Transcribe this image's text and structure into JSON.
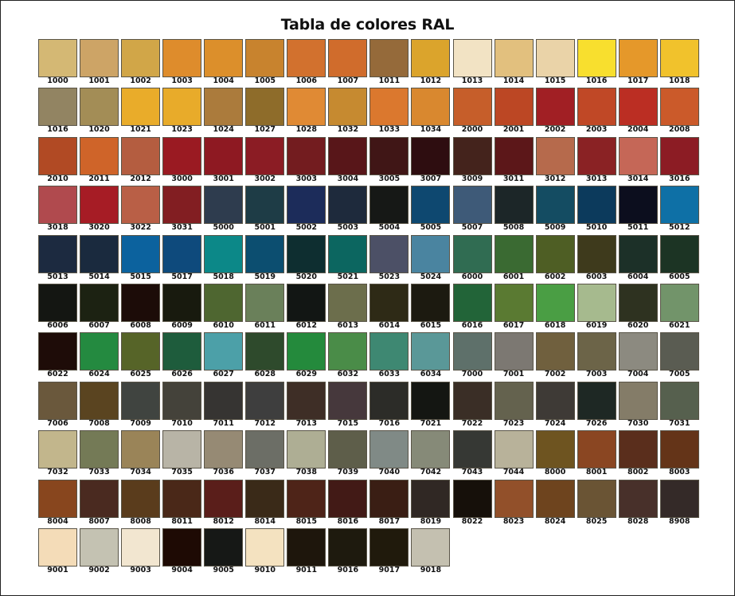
{
  "title": "Tabla de colores RAL",
  "rows": [
    [
      [
        "1000",
        "#d4b874"
      ],
      [
        "1001",
        "#cda466"
      ],
      [
        "1002",
        "#d1a648"
      ],
      [
        "1003",
        "#de8c2c"
      ],
      [
        "1004",
        "#dc8f2b"
      ],
      [
        "1005",
        "#c8832e"
      ],
      [
        "1006",
        "#d2712e"
      ],
      [
        "1007",
        "#d06c2c"
      ],
      [
        "1011",
        "#956a3a"
      ],
      [
        "1012",
        "#dba42c"
      ],
      [
        "1013",
        "#f2e3c4"
      ],
      [
        "1014",
        "#e2c07e"
      ],
      [
        "1015",
        "#ead3a8"
      ],
      [
        "1016",
        "#f8df2e"
      ],
      [
        "1017",
        "#e5982a"
      ],
      [
        "1018",
        "#f1c22c"
      ]
    ],
    [
      [
        "1016",
        "#928462"
      ],
      [
        "1020",
        "#a38d56"
      ],
      [
        "1021",
        "#e9ac2a"
      ],
      [
        "1023",
        "#e8ab2a"
      ],
      [
        "1024",
        "#ab7b3c"
      ],
      [
        "1027",
        "#8e6c2a"
      ],
      [
        "1028",
        "#e08a34"
      ],
      [
        "1032",
        "#c68a30"
      ],
      [
        "1033",
        "#db782e"
      ],
      [
        "1034",
        "#d9882f"
      ],
      [
        "2000",
        "#c65e2a"
      ],
      [
        "2001",
        "#bc4724"
      ],
      [
        "2002",
        "#a11f24"
      ],
      [
        "2003",
        "#c04826"
      ],
      [
        "2004",
        "#bb2e23"
      ],
      [
        "2008",
        "#cb5a2a"
      ]
    ],
    [
      [
        "2010",
        "#b14a24"
      ],
      [
        "2011",
        "#cf6429"
      ],
      [
        "2012",
        "#b45d40"
      ],
      [
        "3000",
        "#9a1a22"
      ],
      [
        "3001",
        "#8e1922"
      ],
      [
        "3002",
        "#8b1c24"
      ],
      [
        "3003",
        "#731c1f"
      ],
      [
        "3004",
        "#581619"
      ],
      [
        "3005",
        "#401616"
      ],
      [
        "3007",
        "#2e0d10"
      ],
      [
        "3009",
        "#44231c"
      ],
      [
        "3011",
        "#5c1719"
      ],
      [
        "3012",
        "#b66a4c"
      ],
      [
        "3013",
        "#8a2224"
      ],
      [
        "3014",
        "#c56757"
      ],
      [
        "3016",
        "#8c1c24"
      ]
    ],
    [
      [
        "3018",
        "#b04a4e"
      ],
      [
        "3020",
        "#a61c25"
      ],
      [
        "3022",
        "#b95f46"
      ],
      [
        "3031",
        "#821e22"
      ],
      [
        "5000",
        "#2e3c4e"
      ],
      [
        "5001",
        "#1e3c46"
      ],
      [
        "5002",
        "#1c2c5a"
      ],
      [
        "5003",
        "#1e2a3c"
      ],
      [
        "5004",
        "#161816"
      ],
      [
        "5005",
        "#0e4870"
      ],
      [
        "5007",
        "#3e5a78"
      ],
      [
        "5008",
        "#1c2628"
      ],
      [
        "5009",
        "#144c62"
      ],
      [
        "5010",
        "#0c3a5c"
      ],
      [
        "5011",
        "#0c0e1e"
      ],
      [
        "5012",
        "#0e70a6"
      ]
    ],
    [
      [
        "5013",
        "#1c2a40"
      ],
      [
        "5014",
        "#1a2a3e"
      ],
      [
        "5015",
        "#0c629e"
      ],
      [
        "5017",
        "#0e4a7c"
      ],
      [
        "5018",
        "#0c8888"
      ],
      [
        "5019",
        "#0c4e70"
      ],
      [
        "5020",
        "#0e2e30"
      ],
      [
        "5021",
        "#0c6660"
      ],
      [
        "5023",
        "#4c5066"
      ],
      [
        "5024",
        "#4a84a0"
      ],
      [
        "6000",
        "#306c52"
      ],
      [
        "6001",
        "#3a6a32"
      ],
      [
        "6002",
        "#4e5e24"
      ],
      [
        "6003",
        "#3e3a1c"
      ],
      [
        "6004",
        "#1c3028"
      ],
      [
        "6005",
        "#1c3424"
      ]
    ],
    [
      [
        "6006",
        "#141612"
      ],
      [
        "6007",
        "#1c2212"
      ],
      [
        "6008",
        "#1c0c08"
      ],
      [
        "6009",
        "#181a0e"
      ],
      [
        "6010",
        "#4e6630"
      ],
      [
        "6011",
        "#6a805a"
      ],
      [
        "6012",
        "#121614"
      ],
      [
        "6013",
        "#6c6e4c"
      ],
      [
        "6014",
        "#2e2a16"
      ],
      [
        "6015",
        "#1c1a10"
      ],
      [
        "6016",
        "#226438"
      ],
      [
        "6017",
        "#5a7a32"
      ],
      [
        "6018",
        "#4a9e44"
      ],
      [
        "6019",
        "#a6ba8e"
      ],
      [
        "6020",
        "#2e3220"
      ],
      [
        "6021",
        "#72946a"
      ]
    ],
    [
      [
        "6022",
        "#1e0c08"
      ],
      [
        "6024",
        "#248a40"
      ],
      [
        "6025",
        "#566428"
      ],
      [
        "6026",
        "#1e5c3c"
      ],
      [
        "6027",
        "#4ca0a8"
      ],
      [
        "6028",
        "#2e4a2c"
      ],
      [
        "6029",
        "#248a3c"
      ],
      [
        "6032",
        "#4a8c48"
      ],
      [
        "6033",
        "#3e8872"
      ],
      [
        "6034",
        "#5a9898"
      ],
      [
        "7000",
        "#5e706a"
      ],
      [
        "7001",
        "#7c7872"
      ],
      [
        "7002",
        "#70603e"
      ],
      [
        "7003",
        "#6c6448"
      ],
      [
        "7004",
        "#8c8a80"
      ],
      [
        "7005",
        "#5a5c52"
      ]
    ],
    [
      [
        "7006",
        "#6a583c"
      ],
      [
        "7008",
        "#5a4420"
      ],
      [
        "7009",
        "#404440"
      ],
      [
        "7010",
        "#44423a"
      ],
      [
        "7011",
        "#363432"
      ],
      [
        "7012",
        "#3e3e3e"
      ],
      [
        "7013",
        "#3e2e26"
      ],
      [
        "7015",
        "#46383c"
      ],
      [
        "7016",
        "#2c2c28"
      ],
      [
        "7021",
        "#141612"
      ],
      [
        "7022",
        "#3a2e26"
      ],
      [
        "7023",
        "#64624e"
      ],
      [
        "7024",
        "#3e3a36"
      ],
      [
        "7026",
        "#1e2824"
      ],
      [
        "7030",
        "#847c68"
      ],
      [
        "7031",
        "#56604e"
      ]
    ],
    [
      [
        "7032",
        "#c2b68c"
      ],
      [
        "7033",
        "#747a56"
      ],
      [
        "7034",
        "#9a8458"
      ],
      [
        "7035",
        "#b8b4a6"
      ],
      [
        "7036",
        "#968a74"
      ],
      [
        "7037",
        "#6c6e66"
      ],
      [
        "7038",
        "#aeae94"
      ],
      [
        "7039",
        "#5e5e4a"
      ],
      [
        "7040",
        "#808a86"
      ],
      [
        "7042",
        "#868a78"
      ],
      [
        "7043",
        "#363834"
      ],
      [
        "7044",
        "#b8b29a"
      ],
      [
        "8000",
        "#6e5420"
      ],
      [
        "8001",
        "#8a4622"
      ],
      [
        "8002",
        "#5a2e1c"
      ],
      [
        "8003",
        "#643418"
      ]
    ],
    [
      [
        "8004",
        "#88461e"
      ],
      [
        "8007",
        "#4a2a20"
      ],
      [
        "8008",
        "#5a3c1c"
      ],
      [
        "8011",
        "#4a2818"
      ],
      [
        "8012",
        "#5a1e1a"
      ],
      [
        "8014",
        "#3a2a18"
      ],
      [
        "8015",
        "#4e2418"
      ],
      [
        "8016",
        "#421a16"
      ],
      [
        "8017",
        "#3a1e14"
      ],
      [
        "8019",
        "#302824"
      ],
      [
        "8022",
        "#16100a"
      ],
      [
        "8023",
        "#92502a"
      ],
      [
        "8024",
        "#6e441e"
      ],
      [
        "8025",
        "#6a5434"
      ],
      [
        "8028",
        "#48302a"
      ],
      [
        "8908",
        "#342a28"
      ]
    ],
    [
      [
        "9001",
        "#f4dcb8"
      ],
      [
        "9002",
        "#c4c2b2"
      ],
      [
        "9003",
        "#f2e6d0"
      ],
      [
        "9004",
        "#1e0a04"
      ],
      [
        "9005",
        "#161816"
      ],
      [
        "9010",
        "#f4e2c0"
      ],
      [
        "9011",
        "#1e160c"
      ],
      [
        "9016",
        "#1e1a0e"
      ],
      [
        "9017",
        "#201a0c"
      ],
      [
        "9018",
        "#c4c0b0"
      ]
    ]
  ]
}
